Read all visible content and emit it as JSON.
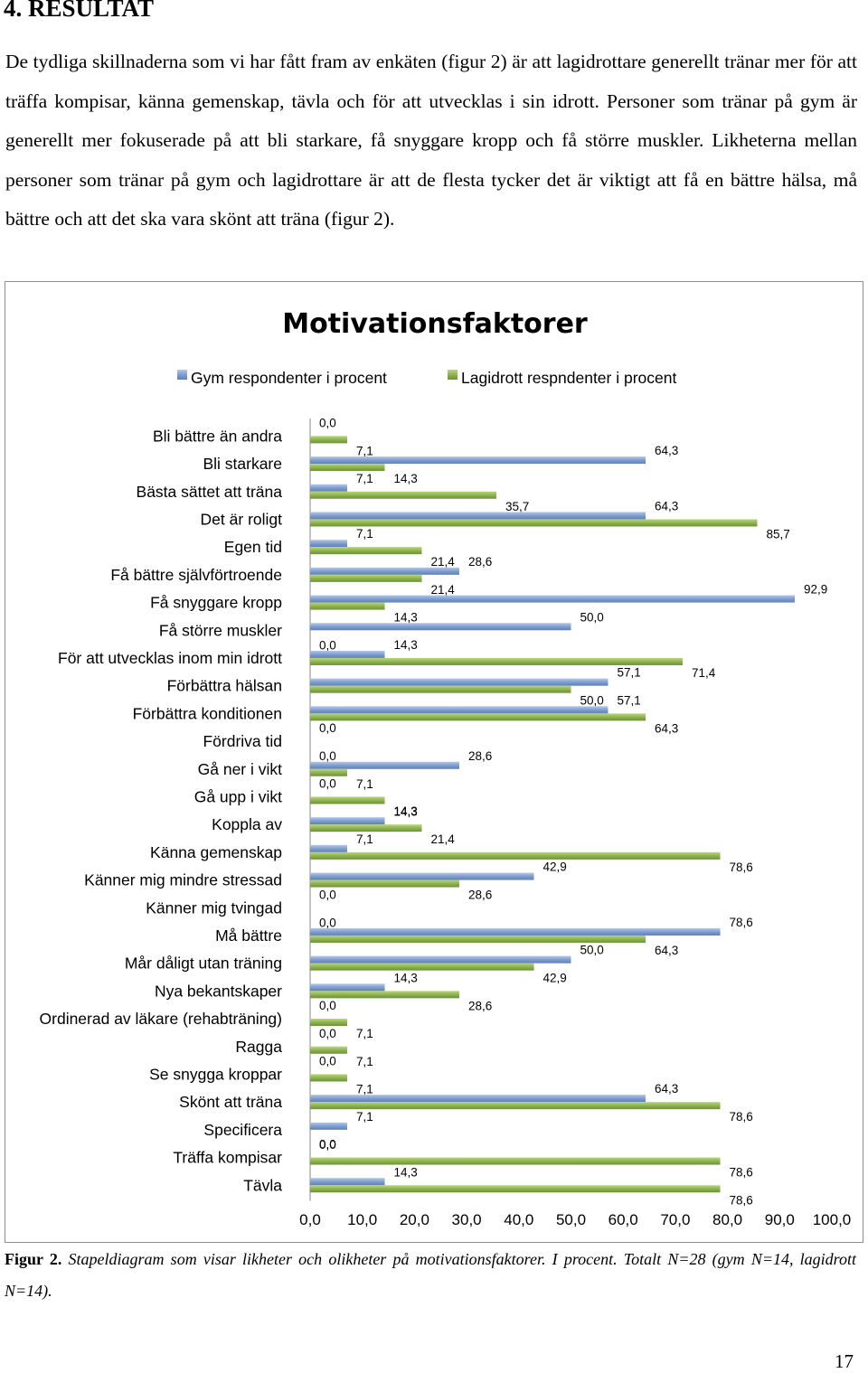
{
  "page": {
    "heading": "4. RESULTAT",
    "paragraph": "De tydliga skillnaderna som vi har fått fram av enkäten (figur 2) är att lagidrottare generellt tränar mer för att träffa kompisar, känna gemenskap, tävla och för att utvecklas i sin idrott. Personer som tränar på gym är generellt mer fokuserade på att bli starkare, få snyggare kropp och få större muskler. Likheterna mellan personer som tränar på gym och lagidrottare är att de flesta tycker det är viktigt att få en bättre hälsa, må bättre och att det ska vara skönt att träna (figur 2).",
    "caption_label": "Figur 2.",
    "caption_text": "Stapeldiagram som visar likheter och olikheter på motivationsfaktorer. I procent. Totalt N=28 (gym N=14, lagidrott N=14).",
    "page_number": "17"
  },
  "chart_data": {
    "type": "bar",
    "orientation": "horizontal",
    "title": "Motivationsfaktorer",
    "categories": [
      "Bli bättre än andra",
      "Bli starkare",
      "Bästa sättet att träna",
      "Det är roligt",
      "Egen tid",
      "Få bättre självförtroende",
      "Få snyggare kropp",
      "Få större muskler",
      "För att utvecklas inom min idrott",
      "Förbättra hälsan",
      "Förbättra konditionen",
      "Fördriva tid",
      "Gå ner i vikt",
      "Gå upp i vikt",
      "Koppla av",
      "Känna gemenskap",
      "Känner mig mindre stressad",
      "Känner mig tvingad",
      "Må bättre",
      "Mår dåligt utan träning",
      "Nya bekantskaper",
      "Ordinerad av läkare (rehabträning)",
      "Ragga",
      "Se snygga kroppar",
      "Skönt att träna",
      "Specificera",
      "Träffa kompisar",
      "Tävla"
    ],
    "series": [
      {
        "name": "Gym respondenter i procent",
        "values": [
          0.0,
          64.3,
          7.1,
          64.3,
          7.1,
          28.6,
          92.9,
          50.0,
          14.3,
          57.1,
          57.1,
          0.0,
          28.6,
          0.0,
          14.3,
          7.1,
          42.9,
          0.0,
          78.6,
          50.0,
          14.3,
          0.0,
          0.0,
          0.0,
          64.3,
          7.1,
          0.0,
          14.3
        ]
      },
      {
        "name": "Lagidrott respndenter i procent",
        "values": [
          7.1,
          14.3,
          35.7,
          85.7,
          21.4,
          21.4,
          14.3,
          0.0,
          71.4,
          50.0,
          64.3,
          0.0,
          7.1,
          14.3,
          21.4,
          78.6,
          28.6,
          0.0,
          64.3,
          42.9,
          28.6,
          7.1,
          7.1,
          7.1,
          78.6,
          0.0,
          78.6,
          78.6
        ]
      }
    ],
    "value_labels": {
      "series0": [
        "0,0",
        "64,3",
        "7,1",
        "64,3",
        "7,1",
        "28,6",
        "92,9",
        "50,0",
        "14,3",
        "57,1",
        "57,1",
        "0,0",
        "28,6",
        "0,0",
        "14,3",
        "7,1",
        "42,9",
        "0,0",
        "78,6",
        "50,0",
        "14,3",
        "0,0",
        "0,0",
        "0,0",
        "64,3",
        "7,1",
        "0,0",
        "14,3"
      ],
      "series1": [
        "7,1",
        "14,3",
        "35,7",
        "85,7",
        "21,4",
        "21,4",
        "14,3",
        "0,0",
        "71,4",
        "50,0",
        "64,3",
        "0,0",
        "7,1",
        "14,3",
        "21,4",
        "78,6",
        "28,6",
        "0,0",
        "64,3",
        "42,9",
        "28,6",
        "7,1",
        "7,1",
        "7,1",
        "78,6",
        "0,0",
        "78,6",
        "78,6"
      ]
    },
    "xlim": [
      0,
      100
    ],
    "xticks": [
      0,
      10,
      20,
      30,
      40,
      50,
      60,
      70,
      80,
      90,
      100
    ],
    "xtick_labels": [
      "0,0",
      "10,0",
      "20,0",
      "30,0",
      "40,0",
      "50,0",
      "60,0",
      "70,0",
      "80,0",
      "90,0",
      "100,0"
    ],
    "legend": "top",
    "grid": false,
    "colors": {
      "series0": "#7f9ed0",
      "series1": "#8eb44f"
    }
  }
}
